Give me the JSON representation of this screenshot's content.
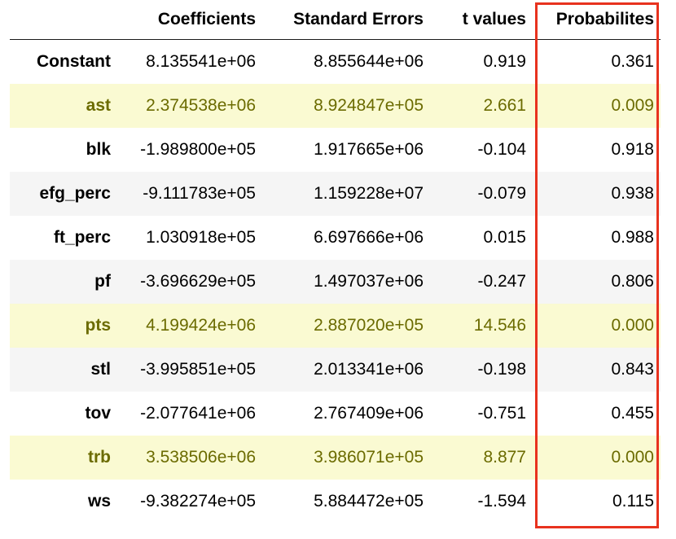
{
  "table": {
    "columns": [
      "",
      "Coefficients",
      "Standard Errors",
      "t values",
      "Probabilites"
    ],
    "rows": [
      {
        "label": "Constant",
        "coef": "8.135541e+06",
        "se": "8.855644e+06",
        "t": "0.919",
        "p": "0.361",
        "highlight": false
      },
      {
        "label": "ast",
        "coef": "2.374538e+06",
        "se": "8.924847e+05",
        "t": "2.661",
        "p": "0.009",
        "highlight": true
      },
      {
        "label": "blk",
        "coef": "-1.989800e+05",
        "se": "1.917665e+06",
        "t": "-0.104",
        "p": "0.918",
        "highlight": false
      },
      {
        "label": "efg_perc",
        "coef": "-9.111783e+05",
        "se": "1.159228e+07",
        "t": "-0.079",
        "p": "0.938",
        "highlight": false
      },
      {
        "label": "ft_perc",
        "coef": "1.030918e+05",
        "se": "6.697666e+06",
        "t": "0.015",
        "p": "0.988",
        "highlight": false
      },
      {
        "label": "pf",
        "coef": "-3.696629e+05",
        "se": "1.497037e+06",
        "t": "-0.247",
        "p": "0.806",
        "highlight": false
      },
      {
        "label": "pts",
        "coef": "4.199424e+06",
        "se": "2.887020e+05",
        "t": "14.546",
        "p": "0.000",
        "highlight": true
      },
      {
        "label": "stl",
        "coef": "-3.995851e+05",
        "se": "2.013341e+06",
        "t": "-0.198",
        "p": "0.843",
        "highlight": false
      },
      {
        "label": "tov",
        "coef": "-2.077641e+06",
        "se": "2.767409e+06",
        "t": "-0.751",
        "p": "0.455",
        "highlight": false
      },
      {
        "label": "trb",
        "coef": "3.538506e+06",
        "se": "3.986071e+05",
        "t": "8.877",
        "p": "0.000",
        "highlight": true
      },
      {
        "label": "ws",
        "coef": "-9.382274e+05",
        "se": "5.884472e+05",
        "t": "-1.594",
        "p": "0.115",
        "highlight": false
      }
    ]
  },
  "colors": {
    "highlight_bg": "#fafad2",
    "highlight_text": "#6b6b00",
    "stripe_bg": "#f5f5f5",
    "box_border": "#e8321e"
  }
}
